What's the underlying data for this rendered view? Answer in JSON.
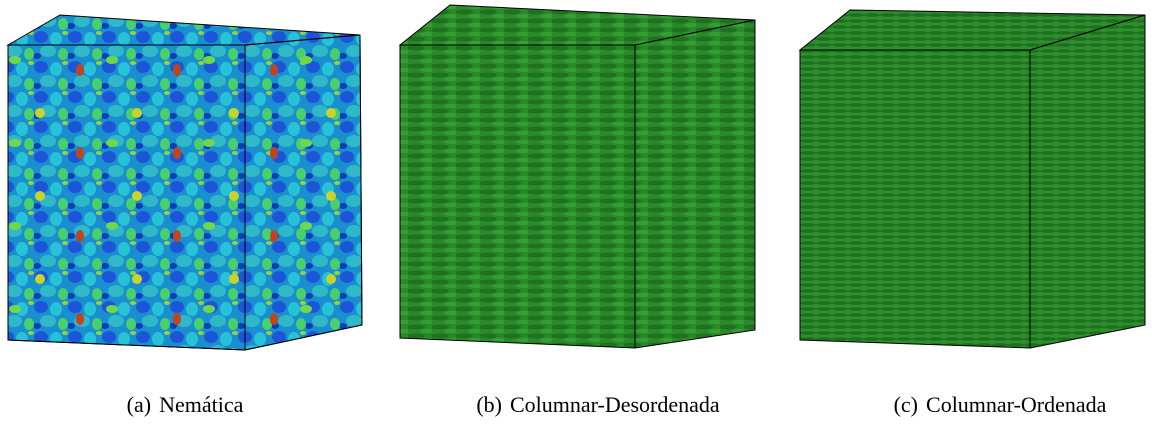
{
  "panels": [
    {
      "label": "(a)",
      "caption": "Nemática"
    },
    {
      "label": "(b)",
      "caption": "Columnar-Desordenada"
    },
    {
      "label": "(c)",
      "caption": "Columnar-Ordenada"
    }
  ]
}
